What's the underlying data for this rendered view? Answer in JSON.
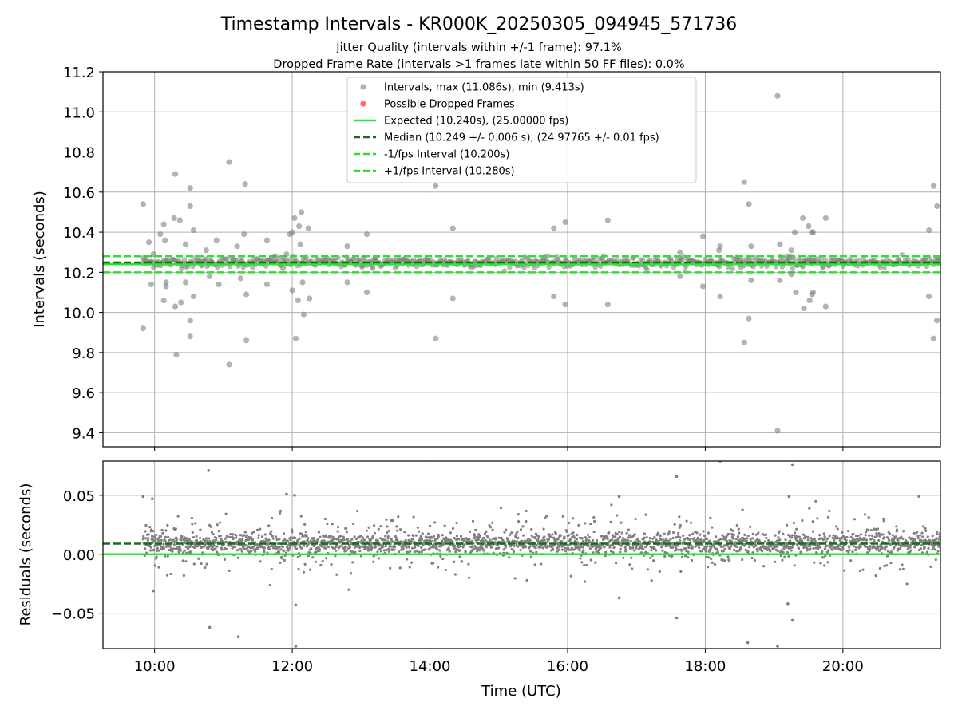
{
  "figure": {
    "title": "Timestamp Intervals - KR000K_20250305_094945_571736",
    "subtitle1": "Jitter Quality (intervals within +/-1 frame): 97.1%",
    "subtitle2": "Dropped Frame Rate (intervals >1 frames late within 50 FF files): 0.0%"
  },
  "colors": {
    "points": "#808080",
    "dropped": "#ff5050",
    "expected": "#22ee22",
    "median": "#1a6b1a",
    "fps_interval": "#33dd33",
    "grid": "#b0b0b0"
  },
  "chart_data": [
    {
      "type": "scatter",
      "id": "intervals",
      "xlabel": "",
      "ylabel": "Intervals (seconds)",
      "xlim": [
        "09:15",
        "21:25"
      ],
      "ylim": [
        9.33,
        11.2
      ],
      "yticks": [
        "9.4",
        "9.6",
        "9.8",
        "10.0",
        "10.2",
        "10.4",
        "10.6",
        "10.8",
        "11.0",
        "11.2"
      ],
      "ytick_values": [
        9.4,
        9.6,
        9.8,
        10.0,
        10.2,
        10.4,
        10.6,
        10.8,
        11.0,
        11.2
      ],
      "grid": true,
      "legend_position": "top-center",
      "legend": [
        {
          "label": "Intervals, max (11.086s), min (9.413s)",
          "kind": "point-gray"
        },
        {
          "label": "Possible Dropped Frames",
          "kind": "point-red"
        },
        {
          "label": "Expected (10.240s), (25.00000 fps)",
          "kind": "line-expected"
        },
        {
          "label": "Median (10.249 +/- 0.006 s), (24.97765 +/- 0.01 fps)",
          "kind": "line-median"
        },
        {
          "label": "-1/fps Interval (10.200s)",
          "kind": "line-fps"
        },
        {
          "label": "+1/fps Interval (10.280s)",
          "kind": "line-fps"
        }
      ],
      "reference_lines": {
        "expected": 10.24,
        "median": 10.249,
        "minus_fps": 10.2,
        "plus_fps": 10.28
      },
      "series": [
        {
          "name": "Intervals, max (11.086s), min (9.413s)",
          "points": [
            [
              "09:50",
              10.54
            ],
            [
              "09:50",
              9.92
            ],
            [
              "09:50",
              10.27
            ],
            [
              "09:55",
              10.35
            ],
            [
              "09:57",
              10.14
            ],
            [
              "09:59",
              10.29
            ],
            [
              "10:05",
              10.39
            ],
            [
              "10:08",
              10.44
            ],
            [
              "10:09",
              10.36
            ],
            [
              "10:10",
              10.15
            ],
            [
              "10:10",
              10.13
            ],
            [
              "10:08",
              10.06
            ],
            [
              "10:17",
              10.47
            ],
            [
              "10:18",
              10.69
            ],
            [
              "10:18",
              10.03
            ],
            [
              "10:19",
              9.79
            ],
            [
              "10:22",
              10.46
            ],
            [
              "10:23",
              10.05
            ],
            [
              "10:27",
              10.34
            ],
            [
              "10:27",
              10.15
            ],
            [
              "10:31",
              10.62
            ],
            [
              "10:31",
              10.53
            ],
            [
              "10:31",
              9.96
            ],
            [
              "10:31",
              9.88
            ],
            [
              "10:34",
              10.41
            ],
            [
              "10:34",
              10.08
            ],
            [
              "10:45",
              10.31
            ],
            [
              "10:48",
              10.18
            ],
            [
              "10:54",
              10.36
            ],
            [
              "10:56",
              10.14
            ],
            [
              "11:05",
              10.75
            ],
            [
              "11:05",
              9.74
            ],
            [
              "11:12",
              10.33
            ],
            [
              "11:15",
              10.17
            ],
            [
              "11:18",
              10.39
            ],
            [
              "11:19",
              10.64
            ],
            [
              "11:20",
              10.09
            ],
            [
              "11:20",
              9.86
            ],
            [
              "11:38",
              10.36
            ],
            [
              "11:38",
              10.14
            ],
            [
              "11:45",
              10.28
            ],
            [
              "11:52",
              10.22
            ],
            [
              "11:55",
              10.29
            ],
            [
              "11:58",
              10.39
            ],
            [
              "12:00",
              10.11
            ],
            [
              "12:00",
              10.4
            ],
            [
              "12:02",
              10.47
            ],
            [
              "12:03",
              9.87
            ],
            [
              "12:05",
              10.06
            ],
            [
              "12:06",
              10.43
            ],
            [
              "12:08",
              10.5
            ],
            [
              "12:09",
              10.15
            ],
            [
              "12:10",
              9.99
            ],
            [
              "12:07",
              10.34
            ],
            [
              "12:14",
              10.42
            ],
            [
              "12:15",
              10.07
            ],
            [
              "12:48",
              10.33
            ],
            [
              "12:48",
              10.15
            ],
            [
              "13:05",
              10.39
            ],
            [
              "13:05",
              10.1
            ],
            [
              "13:02",
              10.27
            ],
            [
              "13:10",
              10.22
            ],
            [
              "14:05",
              10.63
            ],
            [
              "14:05",
              9.87
            ],
            [
              "14:20",
              10.42
            ],
            [
              "14:20",
              10.07
            ],
            [
              "15:48",
              10.42
            ],
            [
              "15:48",
              10.08
            ],
            [
              "15:58",
              10.45
            ],
            [
              "15:58",
              10.04
            ],
            [
              "16:35",
              10.46
            ],
            [
              "16:35",
              10.04
            ],
            [
              "17:38",
              10.3
            ],
            [
              "17:38",
              10.18
            ],
            [
              "17:58",
              10.38
            ],
            [
              "17:58",
              10.13
            ],
            [
              "18:13",
              10.33
            ],
            [
              "18:13",
              10.08
            ],
            [
              "18:12",
              10.31
            ],
            [
              "18:30",
              10.26
            ],
            [
              "18:34",
              10.65
            ],
            [
              "18:34",
              9.85
            ],
            [
              "18:38",
              10.54
            ],
            [
              "18:38",
              9.97
            ],
            [
              "18:40",
              10.33
            ],
            [
              "18:40",
              10.16
            ],
            [
              "19:03",
              11.08
            ],
            [
              "19:03",
              9.41
            ],
            [
              "19:05",
              10.34
            ],
            [
              "19:05",
              10.16
            ],
            [
              "19:12",
              10.28
            ],
            [
              "19:15",
              10.31
            ],
            [
              "19:15",
              10.19
            ],
            [
              "19:18",
              10.4
            ],
            [
              "19:19",
              10.1
            ],
            [
              "19:25",
              10.47
            ],
            [
              "19:26",
              10.02
            ],
            [
              "19:30",
              10.43
            ],
            [
              "19:31",
              10.06
            ],
            [
              "19:33",
              10.4
            ],
            [
              "19:33",
              10.09
            ],
            [
              "19:34",
              10.4
            ],
            [
              "19:34",
              10.1
            ],
            [
              "19:45",
              10.47
            ],
            [
              "19:45",
              10.03
            ],
            [
              "21:15",
              10.41
            ],
            [
              "21:15",
              10.08
            ],
            [
              "21:19",
              10.63
            ],
            [
              "21:19",
              9.87
            ],
            [
              "21:22",
              10.53
            ],
            [
              "21:22",
              9.96
            ]
          ]
        },
        {
          "name": "Possible Dropped Frames",
          "points": []
        }
      ]
    },
    {
      "type": "scatter",
      "id": "residuals",
      "xlabel": "Time (UTC)",
      "ylabel": "Residuals (seconds)",
      "xlim": [
        "09:15",
        "21:25"
      ],
      "ylim": [
        -0.08,
        0.079
      ],
      "xticks": [
        "10:00",
        "12:00",
        "14:00",
        "16:00",
        "18:00",
        "20:00"
      ],
      "yticks": [
        "−0.05",
        "0.00",
        "0.05"
      ],
      "ytick_values": [
        -0.05,
        0.0,
        0.05
      ],
      "grid": true,
      "reference_lines": {
        "expected": 0.0,
        "median": 0.009
      },
      "series": [
        {
          "name": "Residuals",
          "dense_band": {
            "x_start": "09:50",
            "x_end": "21:25",
            "center": 0.009,
            "spread": 0.006,
            "wide_spread": 0.022
          },
          "outliers": [
            [
              "09:50",
              0.049
            ],
            [
              "09:58",
              0.047
            ],
            [
              "09:59",
              -0.031
            ],
            [
              "10:47",
              0.071
            ],
            [
              "10:48",
              -0.062
            ],
            [
              "11:13",
              -0.07
            ],
            [
              "11:55",
              0.051
            ],
            [
              "12:02",
              0.05
            ],
            [
              "12:03",
              -0.043
            ],
            [
              "12:03",
              -0.078
            ],
            [
              "16:45",
              0.049
            ],
            [
              "16:45",
              -0.037
            ],
            [
              "17:35",
              0.066
            ],
            [
              "17:35",
              -0.054
            ],
            [
              "18:13",
              0.079
            ],
            [
              "18:37",
              -0.075
            ],
            [
              "19:03",
              -0.078
            ],
            [
              "19:13",
              0.049
            ],
            [
              "19:16",
              0.076
            ],
            [
              "19:16",
              -0.056
            ],
            [
              "19:12",
              -0.042
            ]
          ]
        }
      ]
    }
  ]
}
